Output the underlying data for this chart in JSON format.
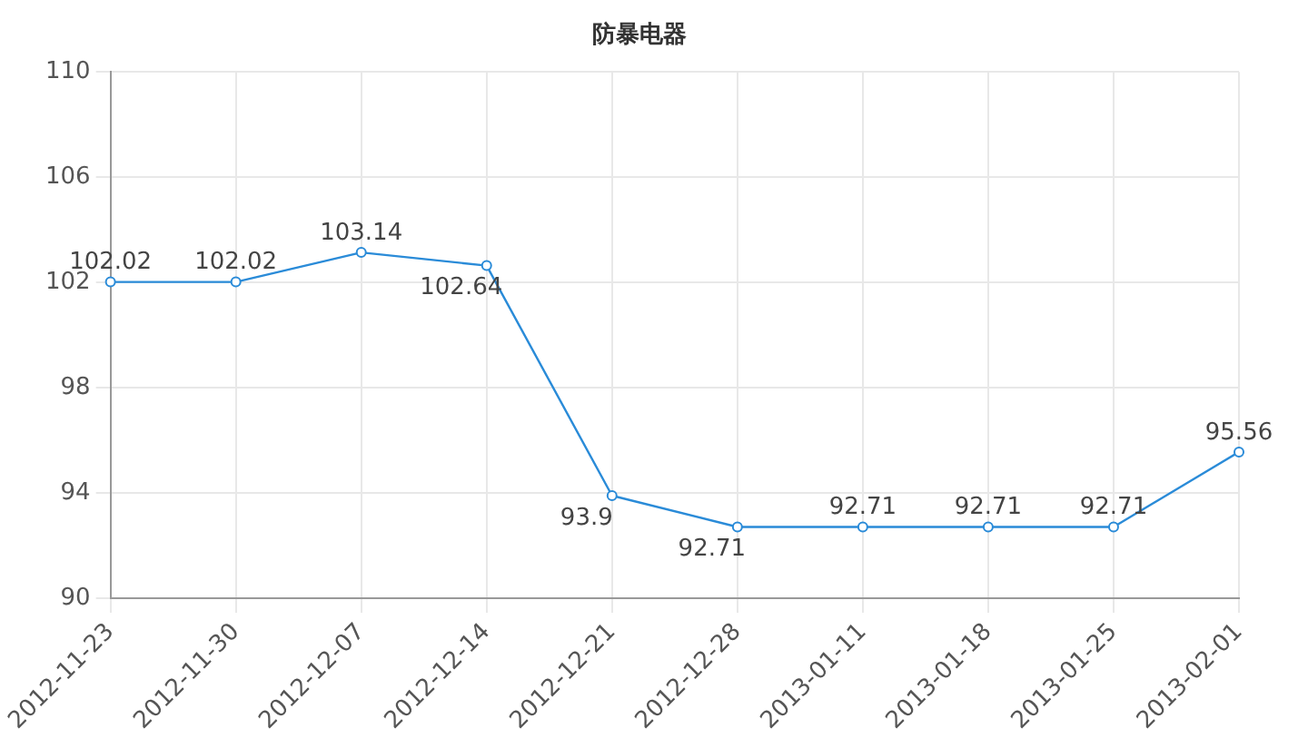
{
  "chart_data": {
    "type": "line",
    "title": "防暴电器",
    "categories": [
      "2012-11-23",
      "2012-11-30",
      "2012-12-07",
      "2012-12-14",
      "2012-12-21",
      "2012-12-28",
      "2013-01-11",
      "2013-01-18",
      "2013-01-25",
      "2013-02-01"
    ],
    "series": [
      {
        "color": "#2a8bd8",
        "values": [
          102.02,
          102.02,
          103.14,
          102.64,
          93.9,
          92.71,
          92.71,
          92.71,
          92.71,
          95.56
        ]
      }
    ],
    "ylim": [
      90,
      110
    ],
    "yticks": [
      90,
      94,
      98,
      102,
      106,
      110
    ],
    "grid": true,
    "legend": false,
    "marker": "circle",
    "line_style": "solid",
    "data_labels": true
  }
}
